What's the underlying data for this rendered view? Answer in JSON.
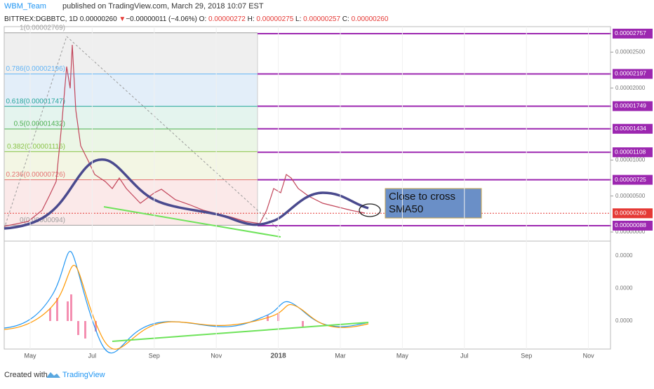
{
  "header": {
    "author": "WBM_Team",
    "published": "published on TradingView.com, March 29, 2018 10:07 EST",
    "symbol": "BITTREX:DGBBTC, 1D",
    "last": "0.00000260",
    "change": "−0.00000011 (−4.06%)",
    "ohlc": [
      [
        "O:",
        "0.00000272"
      ],
      [
        "H:",
        "0.00000275"
      ],
      [
        "L:",
        "0.00000257"
      ],
      [
        "C:",
        "0.00000260"
      ]
    ]
  },
  "chart_data": {
    "type": "line",
    "ylim": [
      -1.17e-06,
      2.854e-05
    ],
    "yticks": [
      {
        "value": 2.5e-05,
        "label": "0.00002500"
      },
      {
        "value": 2e-05,
        "label": "0.00002000"
      },
      {
        "value": 1e-05,
        "label": "0.00001000"
      },
      {
        "value": 5e-06,
        "label": "0.00000500"
      },
      {
        "value": 0,
        "label": "0.00000000"
      }
    ],
    "fib": [
      {
        "value": 2.769e-05,
        "label": "1(0.00002769)",
        "color": "#9e9e9e",
        "fill": "#efefef"
      },
      {
        "value": 2.196e-05,
        "label": "0.786(0.00002196)",
        "color": "#64b5f6",
        "fill": "#e3eef9"
      },
      {
        "value": 1.747e-05,
        "label": "0.618(0.00001747)",
        "color": "#26a69a",
        "fill": "#e4f4ee"
      },
      {
        "value": 1.432e-05,
        "label": "0.5(0.00001432)",
        "color": "#4caf50",
        "fill": "#ebf6e6"
      },
      {
        "value": 1.116e-05,
        "label": "0.382(0.00001116)",
        "color": "#8bc34a",
        "fill": "#f3f6e4"
      },
      {
        "value": 7.26e-06,
        "label": "0.236(0.00000726)",
        "color": "#e57373",
        "fill": "#fbe9e9"
      },
      {
        "value": 9.4e-07,
        "label": "0(0.00000094)",
        "color": "#9e9e9e"
      }
    ],
    "levels": {
      "color": "#9c27b0",
      "values": [
        {
          "value": 2.757e-05,
          "label": "0.00002757"
        },
        {
          "value": 2.197e-05,
          "label": "0.00002197"
        },
        {
          "value": 1.749e-05,
          "label": "0.00001749"
        },
        {
          "value": 1.434e-05,
          "label": "0.00001434"
        },
        {
          "value": 1.108e-05,
          "label": "0.00001108"
        },
        {
          "value": 7.25e-06,
          "label": "0.00000725"
        },
        {
          "value": 8.8e-07,
          "label": "0.00000088"
        }
      ]
    },
    "current": {
      "value": 2.6e-06,
      "label": "0.00000260",
      "color": "#e53935"
    },
    "macd_ticks": [
      "0.0000",
      "0.0000",
      "0.0000"
    ],
    "categories": [
      "May",
      "Jul",
      "Sep",
      "Nov",
      "2018",
      "Mar",
      "May",
      "Jul",
      "Sep",
      "Nov"
    ],
    "annotation": [
      "Close to cross",
      "SMA50"
    ]
  },
  "footer": {
    "created": "Created with",
    "brand": "TradingView"
  }
}
